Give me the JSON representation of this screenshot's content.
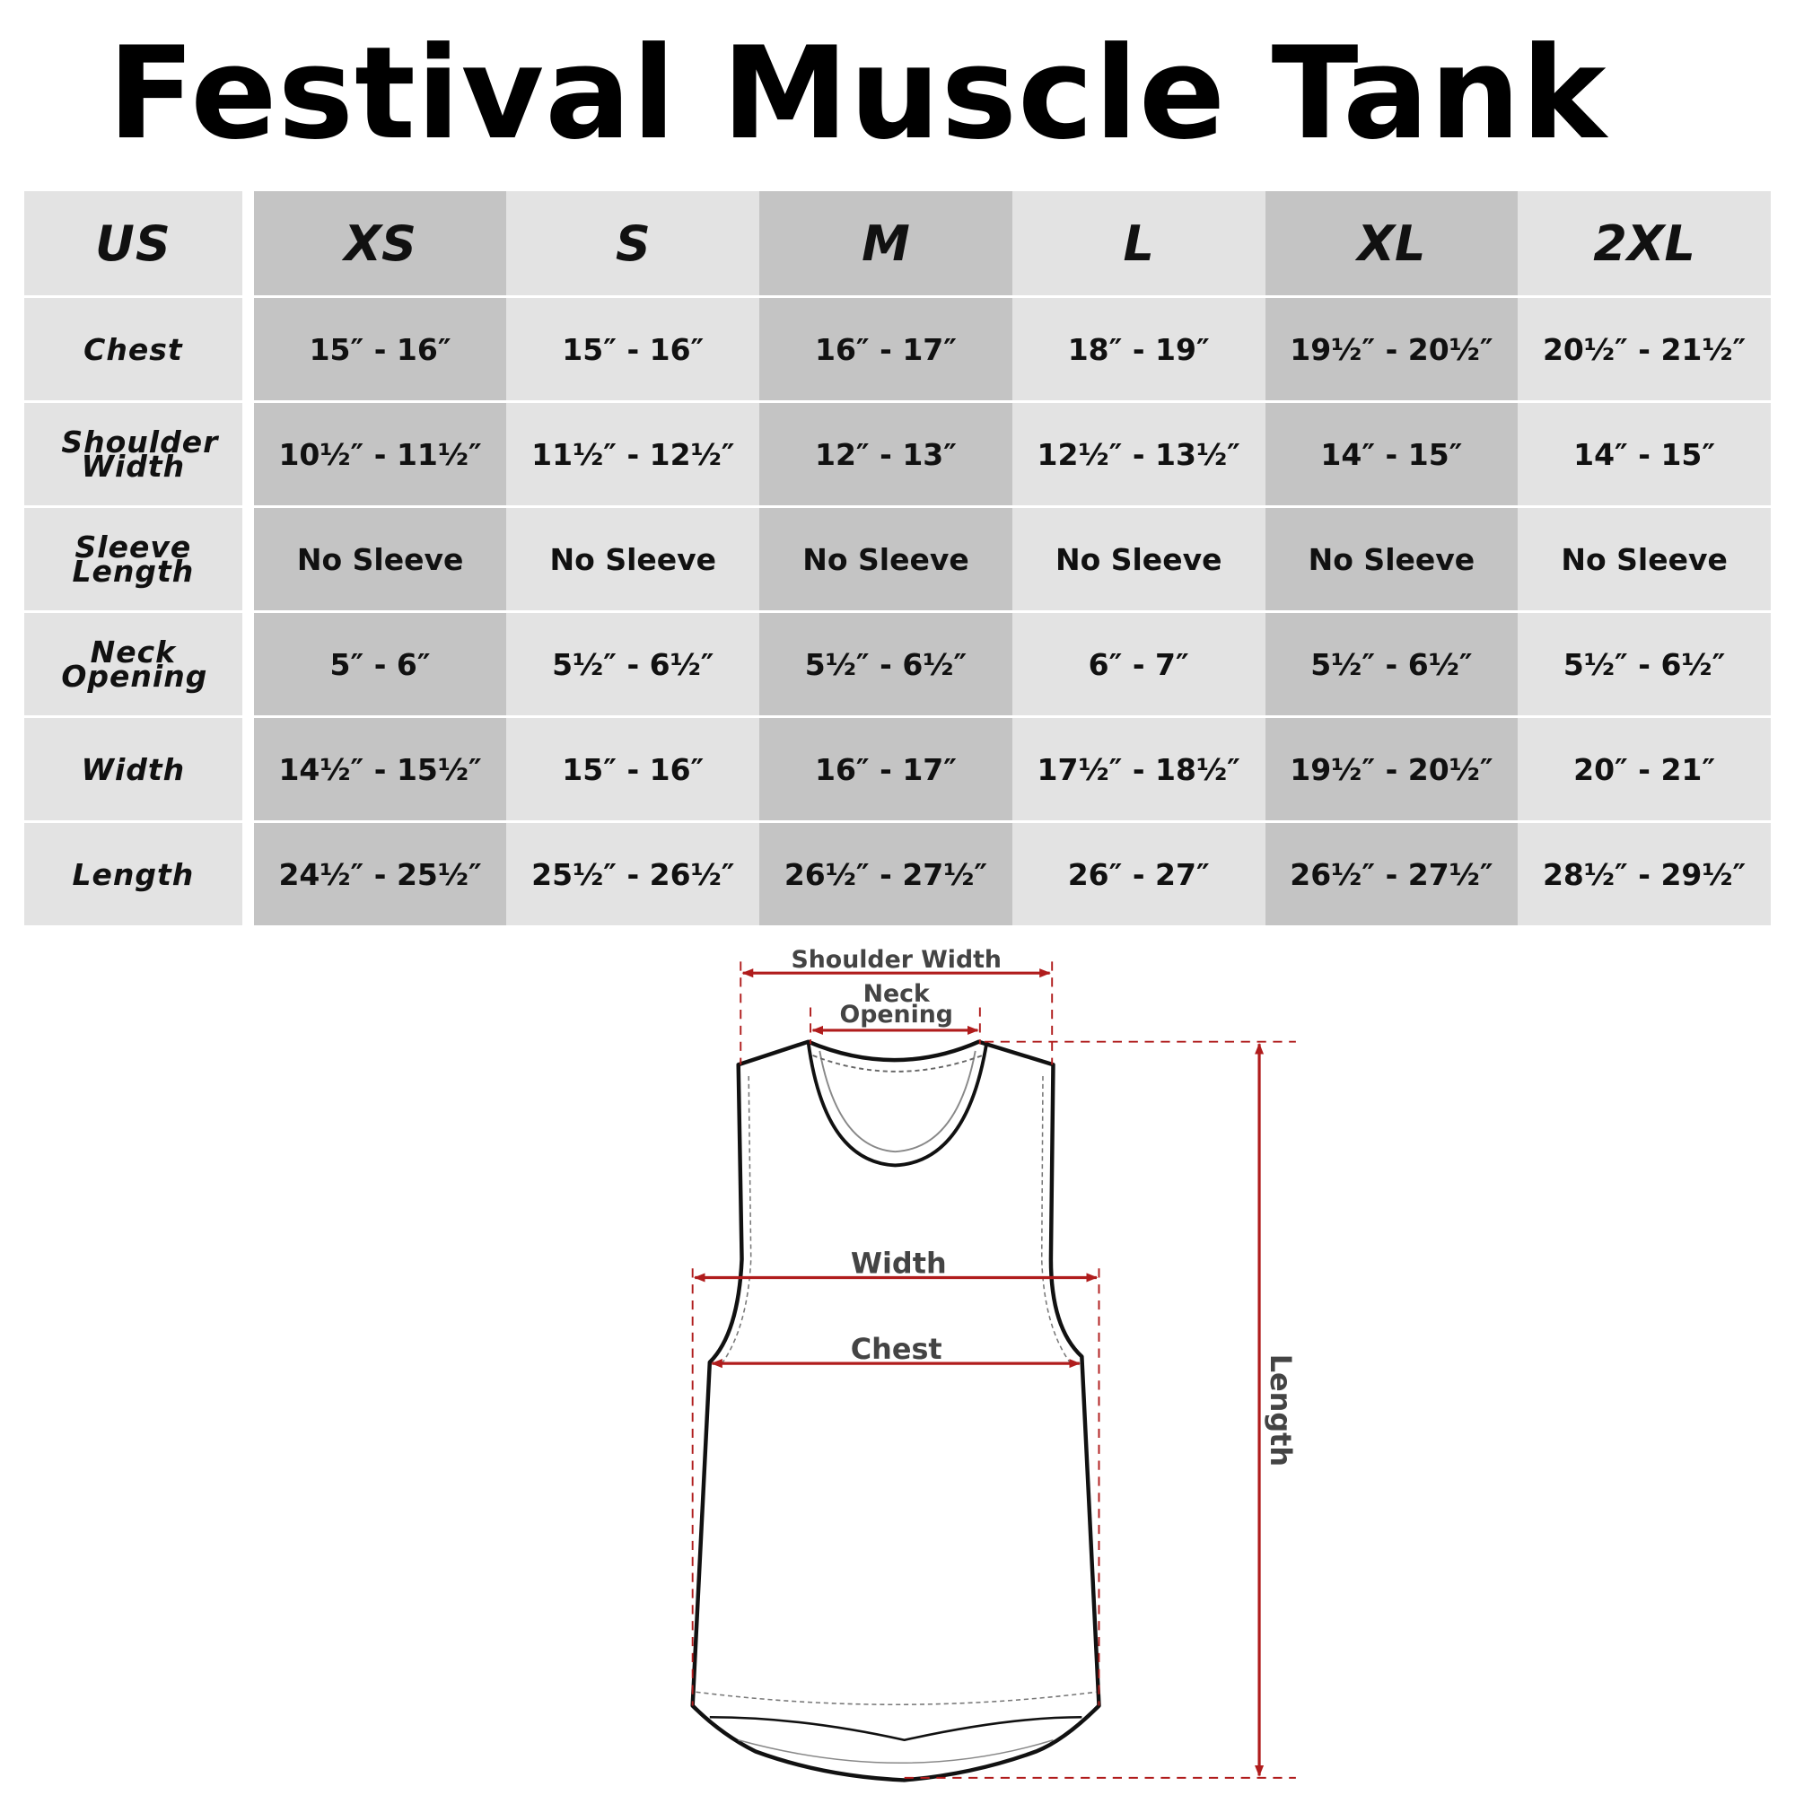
{
  "title": "Festival Muscle Tank",
  "table": {
    "header": [
      "US",
      "XS",
      "S",
      "M",
      "L",
      "XL",
      "2XL"
    ],
    "rows": [
      {
        "label": "Chest",
        "values": [
          "15″ - 16″",
          "15″ - 16″",
          "16″ - 17″",
          "18″ - 19″",
          "19½″ - 20½″",
          "20½″ - 21½″"
        ]
      },
      {
        "label": "Shoulder Width",
        "values": [
          "10½″ - 11½″",
          "11½″ - 12½″",
          "12″ - 13″",
          "12½″ - 13½″",
          "14″ - 15″",
          "14″ - 15″"
        ]
      },
      {
        "label": "Sleeve Length",
        "values": [
          "No Sleeve",
          "No Sleeve",
          "No Sleeve",
          "No Sleeve",
          "No Sleeve",
          "No Sleeve"
        ]
      },
      {
        "label": "Neck Opening",
        "values": [
          "5″ - 6″",
          "5½″ - 6½″",
          "5½″ - 6½″",
          "6″ - 7″",
          "5½″ - 6½″",
          "5½″ - 6½″"
        ]
      },
      {
        "label": "Width",
        "values": [
          "14½″ - 15½″",
          "15″ - 16″",
          "16″ - 17″",
          "17½″ - 18½″",
          "19½″ - 20½″",
          "20″ - 21″"
        ]
      },
      {
        "label": "Length",
        "values": [
          "24½″ - 25½″",
          "25½″ - 26½″",
          "26½″ - 27½″",
          "26″ - 27″",
          "26½″ - 27½″",
          "28½″ - 29½″"
        ]
      }
    ]
  },
  "diagram": {
    "shoulder_width": "Shoulder Width",
    "neck_line1": "Neck",
    "neck_line2": "Opening",
    "width": "Width",
    "chest": "Chest",
    "length": "Length"
  },
  "colors": {
    "dark_column": "#c4c4c4",
    "light_column": "#e3e3e3",
    "measure_line": "#b01c1c"
  }
}
